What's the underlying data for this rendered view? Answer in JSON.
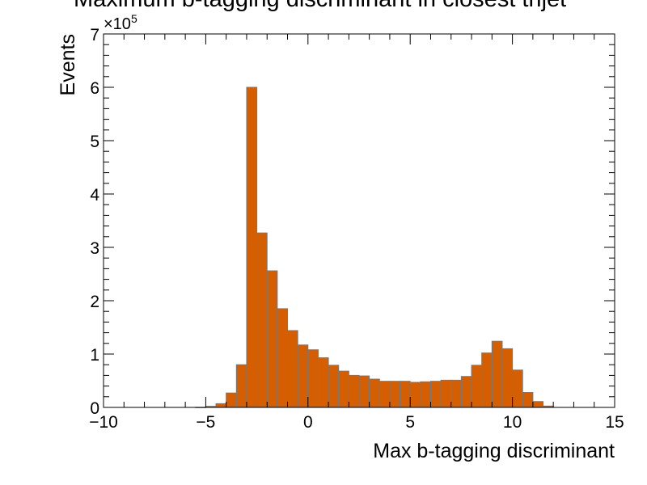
{
  "chart_data": {
    "type": "bar",
    "title": "Maximum b-tagging discriminant in closest trijet",
    "xlabel": "Max b-tagging discriminant",
    "ylabel": "Events",
    "y_multiplier": "×10",
    "y_multiplier_exponent": "5",
    "xlim": [
      -10,
      15
    ],
    "ylim": [
      0,
      700000
    ],
    "x_tick_labels": [
      "−10",
      "−5",
      "0",
      "5",
      "10",
      "15"
    ],
    "x_tick_values": [
      -10,
      -5,
      0,
      5,
      10,
      15
    ],
    "y_tick_labels": [
      "0",
      "1",
      "2",
      "3",
      "4",
      "5",
      "6",
      "7"
    ],
    "y_tick_values": [
      0,
      100000,
      200000,
      300000,
      400000,
      500000,
      600000,
      700000
    ],
    "bin_width": 0.5,
    "bin_edges_start": -10,
    "values": [
      0,
      0,
      0,
      0,
      0,
      0,
      0,
      0,
      0,
      200,
      2000,
      7000,
      27000,
      80000,
      600000,
      327000,
      256000,
      185000,
      144000,
      117000,
      108000,
      93000,
      79000,
      68000,
      60000,
      59000,
      53000,
      49000,
      49000,
      49000,
      47000,
      48000,
      49000,
      51000,
      51000,
      58000,
      79000,
      102000,
      124000,
      110000,
      70000,
      28000,
      11000,
      2500,
      0,
      0,
      0,
      0,
      0,
      0
    ],
    "fill_color": "#d55e00",
    "edge_color": "#6b7b8a",
    "grid": false
  }
}
